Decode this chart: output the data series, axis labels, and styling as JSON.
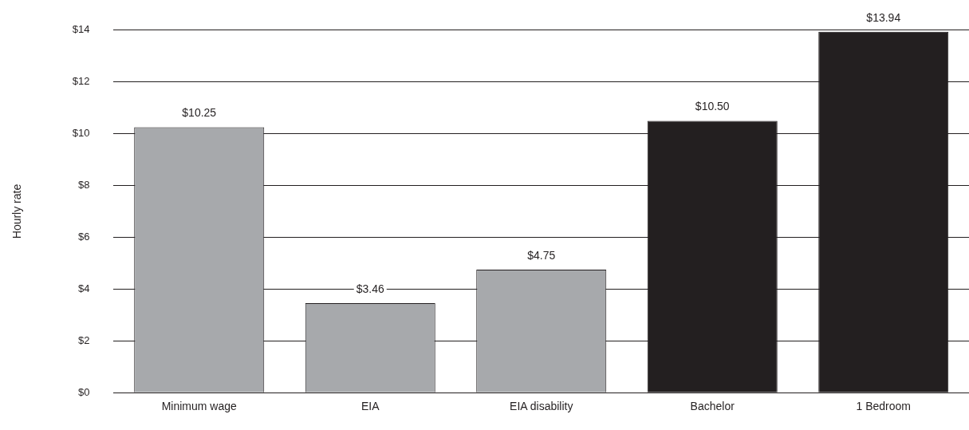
{
  "chart_data": {
    "type": "bar",
    "ylabel": "Hourly rate",
    "categories": [
      "Minimum wage",
      "EIA",
      "EIA disability",
      "Bachelor",
      "1 Bedroom"
    ],
    "values": [
      10.25,
      3.46,
      4.75,
      10.5,
      13.94
    ],
    "colors": [
      "#a7a9ac",
      "#a7a9ac",
      "#a7a9ac",
      "#231f20",
      "#231f20"
    ],
    "value_labels": [
      "$10.25",
      "$3.46",
      "$4.75",
      "$10.50",
      "$13.94"
    ],
    "ylim": [
      0,
      14
    ],
    "yticks": [
      {
        "value": 0,
        "label": "$0"
      },
      {
        "value": 2,
        "label": "$2"
      },
      {
        "value": 4,
        "label": "$4"
      },
      {
        "value": 6,
        "label": "$6"
      },
      {
        "value": 8,
        "label": "$8"
      },
      {
        "value": 10,
        "label": "$10"
      },
      {
        "value": 12,
        "label": "$12"
      },
      {
        "value": 14,
        "label": "$14"
      }
    ],
    "grid": "y",
    "legend": false
  }
}
